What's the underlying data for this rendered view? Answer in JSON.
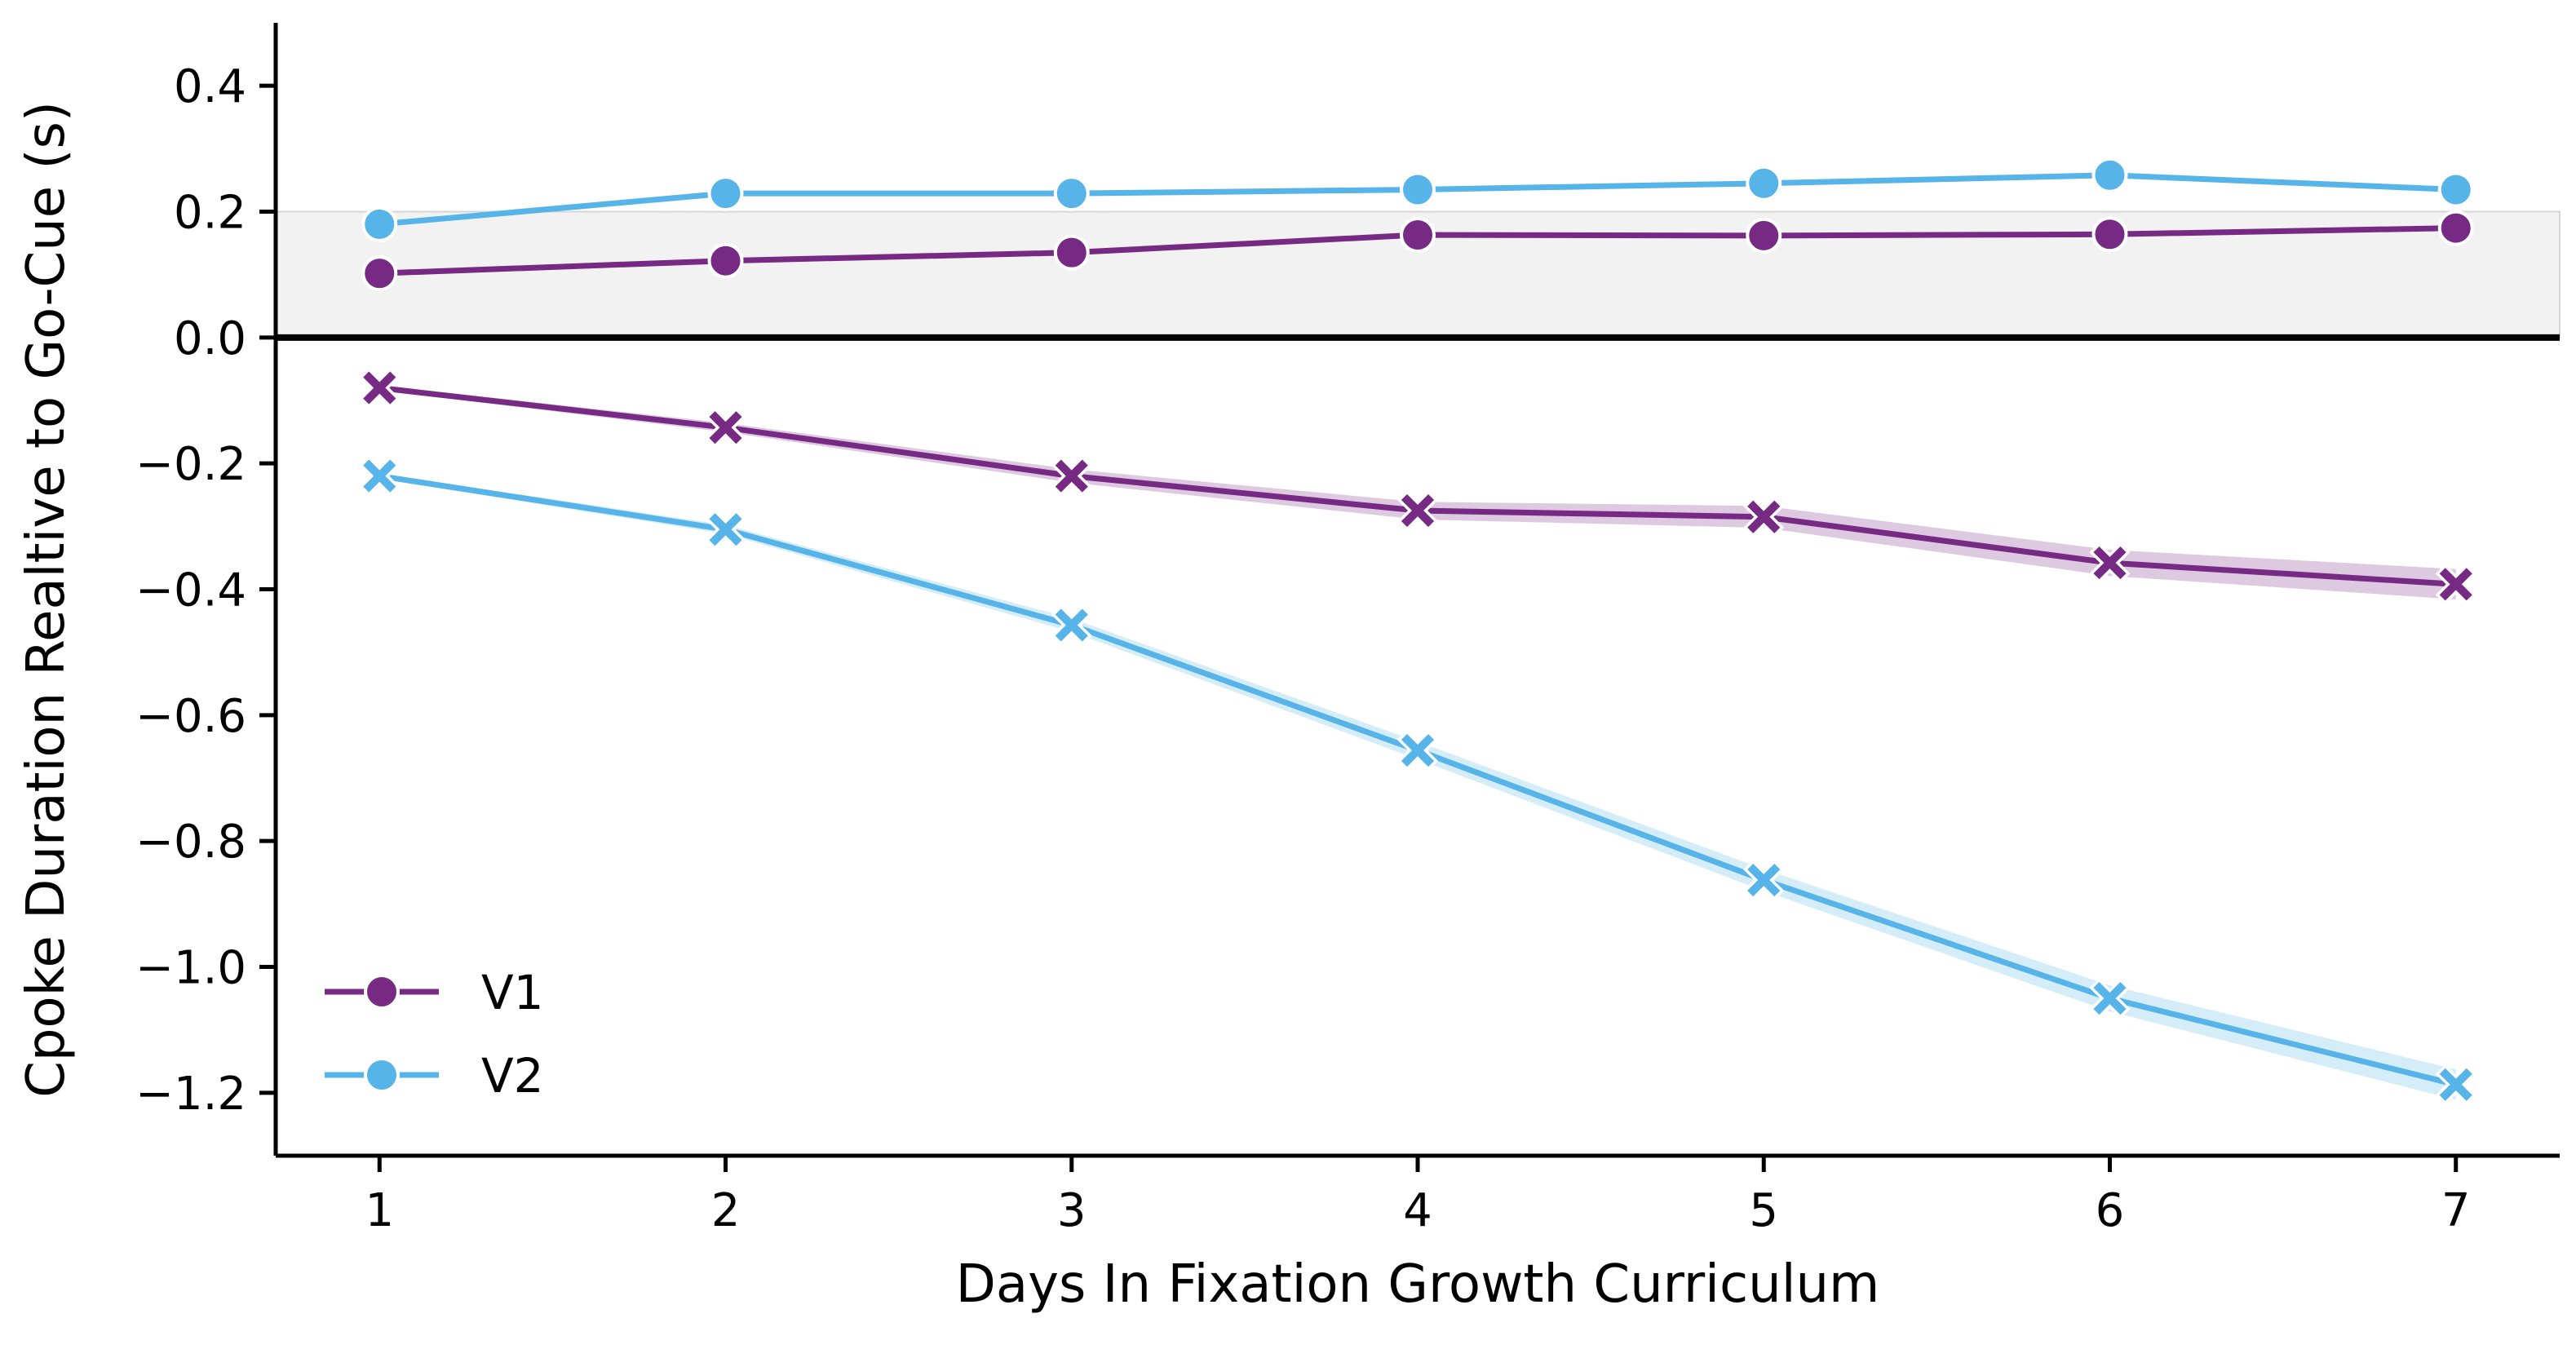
{
  "chart_data": {
    "type": "line",
    "xlabel": "Days In Fixation Growth Curriculum",
    "ylabel": "Cpoke Duration Realtive to Go-Cue (s)",
    "x": [
      1,
      2,
      3,
      4,
      5,
      6,
      7
    ],
    "xlim": [
      0.7,
      7.3
    ],
    "ylim": [
      -1.3,
      0.5
    ],
    "xticks": [
      1,
      2,
      3,
      4,
      5,
      6,
      7
    ],
    "xtick_labels": [
      "1",
      "2",
      "3",
      "4",
      "5",
      "6",
      "7"
    ],
    "yticks": [
      0.4,
      0.2,
      0.0,
      -0.2,
      -0.4,
      -0.6,
      -0.8,
      -1.0,
      -1.2
    ],
    "ytick_labels": [
      "0.4",
      "0.2",
      "0.0",
      "−0.2",
      "−0.4",
      "−0.6",
      "−0.8",
      "−1.0",
      "−1.2"
    ],
    "grid": false,
    "shaded_band": {
      "y_from": 0.0,
      "y_to": 0.2,
      "color": "#f2f2f2"
    },
    "zero_line": true,
    "legend_placement": "bottom-left",
    "series": [
      {
        "name": "V1",
        "group": "upper",
        "marker": "circle",
        "color": "#762a83",
        "values": [
          0.102,
          0.122,
          0.135,
          0.163,
          0.162,
          0.164,
          0.174
        ]
      },
      {
        "name": "V2",
        "group": "upper",
        "marker": "circle",
        "color": "#56b4e9",
        "values": [
          0.18,
          0.229,
          0.229,
          0.235,
          0.245,
          0.258,
          0.235
        ]
      },
      {
        "name": "V1",
        "group": "lower",
        "marker": "x",
        "color": "#762a83",
        "values": [
          -0.08,
          -0.143,
          -0.22,
          -0.275,
          -0.285,
          -0.358,
          -0.392
        ]
      },
      {
        "name": "V2",
        "group": "lower",
        "marker": "x",
        "color": "#56b4e9",
        "values": [
          -0.22,
          -0.305,
          -0.457,
          -0.656,
          -0.862,
          -1.05,
          -1.187
        ]
      }
    ],
    "legend": [
      {
        "label": "V1",
        "color": "#762a83"
      },
      {
        "label": "V2",
        "color": "#56b4e9"
      }
    ]
  }
}
